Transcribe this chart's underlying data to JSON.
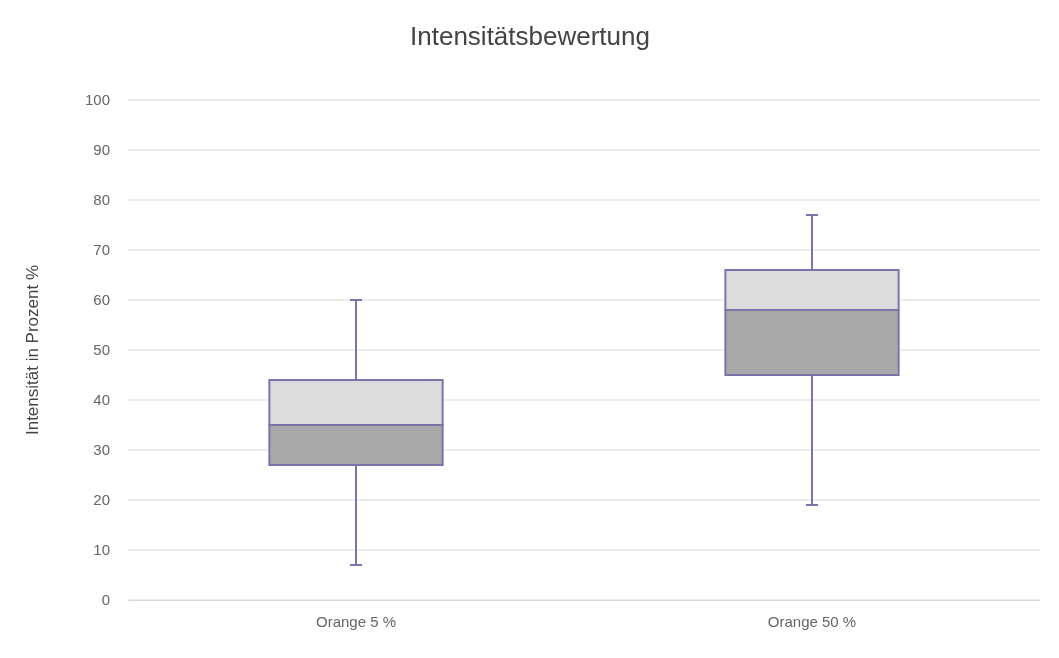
{
  "chart_data": {
    "type": "box",
    "title": "Intensitätsbewertung",
    "ylabel": "Intensität in Prozent %",
    "categories": [
      "Orange 5 %",
      "Orange 50 %"
    ],
    "boxes": [
      {
        "low": 7,
        "q1": 27,
        "median": 35,
        "q3": 44,
        "high": 60
      },
      {
        "low": 19,
        "q1": 45,
        "median": 58,
        "q3": 66,
        "high": 77
      }
    ],
    "ylim": [
      0,
      100
    ],
    "yticks": [
      0,
      10,
      20,
      30,
      40,
      50,
      60,
      70,
      80,
      90,
      100
    ],
    "grid": "y"
  }
}
